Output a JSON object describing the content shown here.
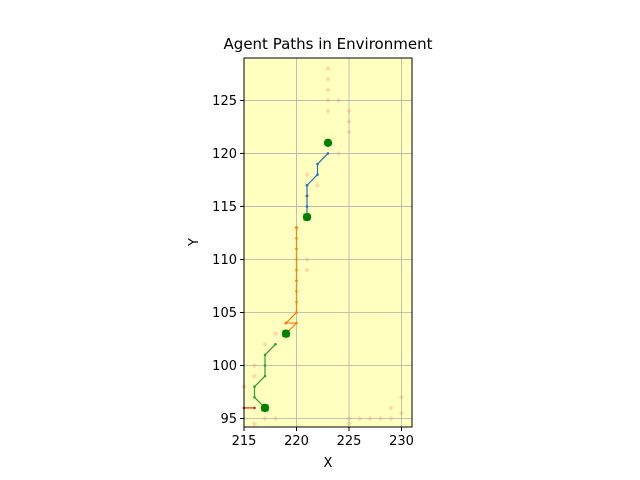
{
  "chart_data": {
    "type": "line",
    "title": "Agent Paths in Environment",
    "xlabel": "X",
    "ylabel": "Y",
    "xlim": [
      215,
      231
    ],
    "ylim": [
      94.2,
      129
    ],
    "xticks": [
      215,
      220,
      225,
      230
    ],
    "yticks": [
      95,
      100,
      105,
      110,
      115,
      120,
      125
    ],
    "grid": true,
    "background_color": "#ffffc0",
    "obstacle_color": "#ffd9a0",
    "goal_color": "#008000",
    "obstacles": [
      {
        "x": 223,
        "y": 128
      },
      {
        "x": 223,
        "y": 127
      },
      {
        "x": 223,
        "y": 126
      },
      {
        "x": 223,
        "y": 125
      },
      {
        "x": 224,
        "y": 125
      },
      {
        "x": 223,
        "y": 124
      },
      {
        "x": 225,
        "y": 124
      },
      {
        "x": 225,
        "y": 123
      },
      {
        "x": 225,
        "y": 122
      },
      {
        "x": 224,
        "y": 120
      },
      {
        "x": 221,
        "y": 118
      },
      {
        "x": 221,
        "y": 116
      },
      {
        "x": 222,
        "y": 117
      },
      {
        "x": 220,
        "y": 113
      },
      {
        "x": 221,
        "y": 110
      },
      {
        "x": 221,
        "y": 109
      },
      {
        "x": 219,
        "y": 104
      },
      {
        "x": 218,
        "y": 103
      },
      {
        "x": 217,
        "y": 102
      },
      {
        "x": 216,
        "y": 100
      },
      {
        "x": 215,
        "y": 98
      },
      {
        "x": 216,
        "y": 99
      },
      {
        "x": 217,
        "y": 95
      },
      {
        "x": 218,
        "y": 95
      },
      {
        "x": 216,
        "y": 94.5
      },
      {
        "x": 225,
        "y": 95
      },
      {
        "x": 226,
        "y": 95
      },
      {
        "x": 227,
        "y": 95
      },
      {
        "x": 228,
        "y": 95
      },
      {
        "x": 229,
        "y": 95
      },
      {
        "x": 229,
        "y": 96
      },
      {
        "x": 230,
        "y": 97
      },
      {
        "x": 230,
        "y": 95.5
      },
      {
        "x": 225,
        "y": 94.5
      }
    ],
    "series": [
      {
        "color": "#1f77b4",
        "x": [
          221,
          221,
          221,
          221,
          221,
          221,
          222,
          222,
          223
        ],
        "y": [
          114,
          115,
          116,
          117,
          117,
          117,
          118,
          119,
          120
        ]
      },
      {
        "color": "#ff7f0e",
        "x": [
          219,
          220,
          219,
          220,
          220,
          220,
          220,
          220,
          220,
          220,
          220,
          220,
          220
        ],
        "y": [
          103,
          104,
          104,
          105,
          106,
          107,
          108,
          109,
          110,
          111,
          112,
          113,
          113
        ]
      },
      {
        "color": "#2ca02c",
        "x": [
          217,
          216,
          216,
          217,
          217,
          217,
          218
        ],
        "y": [
          96,
          97,
          98,
          99,
          100,
          101,
          102
        ]
      },
      {
        "color": "#d62728",
        "x": [
          215,
          216
        ],
        "y": [
          96,
          96
        ]
      }
    ],
    "start_markers": [
      {
        "x": 221,
        "y": 114
      },
      {
        "x": 219,
        "y": 103
      },
      {
        "x": 217,
        "y": 96
      }
    ],
    "goal_markers": [
      {
        "x": 223,
        "y": 121
      },
      {
        "x": 221,
        "y": 114
      },
      {
        "x": 219,
        "y": 103
      },
      {
        "x": 217,
        "y": 96
      }
    ]
  }
}
